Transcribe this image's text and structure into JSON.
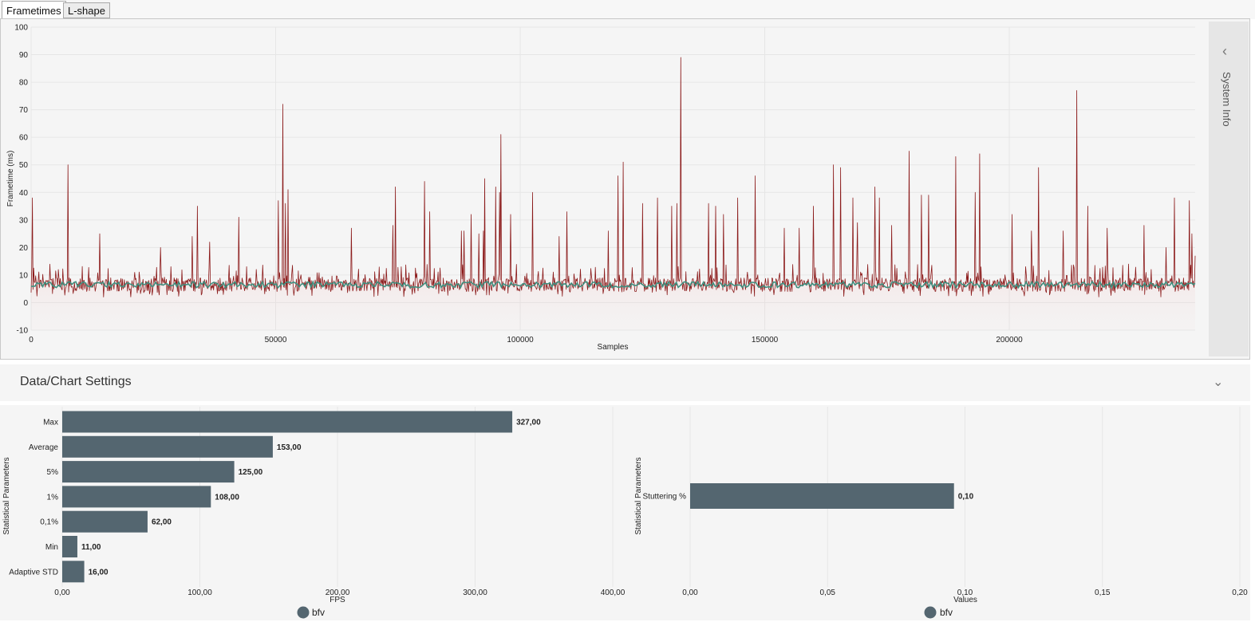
{
  "tabs": [
    {
      "label": "Frametimes",
      "active": true
    },
    {
      "label": "L-shape",
      "active": false
    }
  ],
  "side_panel": {
    "title": "System Info",
    "icon": "chevron-left-icon"
  },
  "settings": {
    "title": "Data/Chart Settings",
    "icon": "chevron-down-icon"
  },
  "chart_data": [
    {
      "type": "line",
      "xlabel": "Samples",
      "ylabel": "Frametime (ms)",
      "xlim": [
        0,
        238000
      ],
      "ylim": [
        -10,
        100
      ],
      "x_ticks": [
        "0",
        "50000",
        "100000",
        "150000",
        "200000"
      ],
      "y_ticks": [
        "100",
        "90",
        "80",
        "70",
        "60",
        "50",
        "40",
        "30",
        "20",
        "10",
        "0",
        "-10"
      ],
      "grid": true,
      "colors": {
        "frametime": "#8b1a1a",
        "moving_average": "#3f8f7f",
        "fill": "#e8a0a0"
      },
      "series": [
        {
          "name": "frametime",
          "baseline_ms": 6.5,
          "noise_range_ms": [
            2,
            14
          ],
          "spikes": [
            [
              300,
              38
            ],
            [
              7500,
              50
            ],
            [
              14000,
              25
            ],
            [
              26500,
              20
            ],
            [
              33000,
              24
            ],
            [
              34000,
              35
            ],
            [
              36500,
              22
            ],
            [
              42500,
              31
            ],
            [
              50500,
              37
            ],
            [
              51500,
              72
            ],
            [
              52000,
              36
            ],
            [
              52500,
              41
            ],
            [
              65500,
              27
            ],
            [
              74000,
              28
            ],
            [
              74500,
              42
            ],
            [
              80500,
              44
            ],
            [
              81500,
              33
            ],
            [
              88000,
              26
            ],
            [
              88500,
              26
            ],
            [
              90000,
              32
            ],
            [
              91500,
              25
            ],
            [
              92500,
              26
            ],
            [
              92800,
              45
            ],
            [
              95000,
              42
            ],
            [
              95800,
              40
            ],
            [
              96000,
              61
            ],
            [
              98000,
              32
            ],
            [
              102500,
              40
            ],
            [
              109500,
              33
            ],
            [
              108000,
              24
            ],
            [
              118000,
              26
            ],
            [
              120000,
              46
            ],
            [
              121000,
              51
            ],
            [
              125000,
              36
            ],
            [
              128000,
              38
            ],
            [
              131000,
              35
            ],
            [
              132000,
              36
            ],
            [
              132800,
              89
            ],
            [
              138500,
              36
            ],
            [
              140000,
              35
            ],
            [
              141500,
              32
            ],
            [
              144500,
              38
            ],
            [
              148000,
              46
            ],
            [
              154000,
              27
            ],
            [
              157000,
              27
            ],
            [
              160000,
              35
            ],
            [
              164000,
              50
            ],
            [
              165500,
              49
            ],
            [
              168000,
              38
            ],
            [
              169000,
              29
            ],
            [
              172500,
              42
            ],
            [
              173500,
              38
            ],
            [
              176000,
              28
            ],
            [
              179500,
              55
            ],
            [
              182000,
              39
            ],
            [
              183500,
              39
            ],
            [
              189000,
              53
            ],
            [
              193000,
              40
            ],
            [
              194000,
              54
            ],
            [
              200500,
              32
            ],
            [
              204500,
              26
            ],
            [
              206000,
              49
            ],
            [
              211000,
              26
            ],
            [
              213800,
              77
            ],
            [
              216000,
              35
            ],
            [
              220000,
              27
            ],
            [
              227500,
              28
            ],
            [
              232000,
              20
            ],
            [
              233800,
              38
            ],
            [
              236800,
              37
            ],
            [
              237300,
              25
            ],
            [
              238000,
              17
            ]
          ]
        },
        {
          "name": "moving_average",
          "level_ms": 6.5
        }
      ]
    },
    {
      "type": "bar",
      "orientation": "horizontal",
      "ylabel": "Statistical Parameters",
      "xlabel": "FPS",
      "xlim": [
        0,
        400
      ],
      "x_ticks": [
        "0,00",
        "100,00",
        "200,00",
        "300,00",
        "400,00"
      ],
      "categories": [
        "Max",
        "Average",
        "5%",
        "1%",
        "0,1%",
        "Min",
        "Adaptive STD"
      ],
      "values": [
        327,
        153,
        125,
        108,
        62,
        11,
        16
      ],
      "labels": [
        "327,00",
        "153,00",
        "125,00",
        "108,00",
        "62,00",
        "11,00",
        "16,00"
      ],
      "bar_color": "#546670",
      "legend": {
        "name": "bfv",
        "placement": "bottom"
      }
    },
    {
      "type": "bar",
      "orientation": "horizontal",
      "ylabel": "Statistical Parameters",
      "xlabel": "Values",
      "xlim": [
        0,
        0.2
      ],
      "x_ticks": [
        "0,00",
        "0,05",
        "0,10",
        "0,15",
        "0,20"
      ],
      "categories": [
        "Stuttering %"
      ],
      "values": [
        0.096
      ],
      "labels": [
        "0,10"
      ],
      "bar_color": "#546670",
      "legend": {
        "name": "bfv",
        "placement": "bottom"
      }
    }
  ]
}
